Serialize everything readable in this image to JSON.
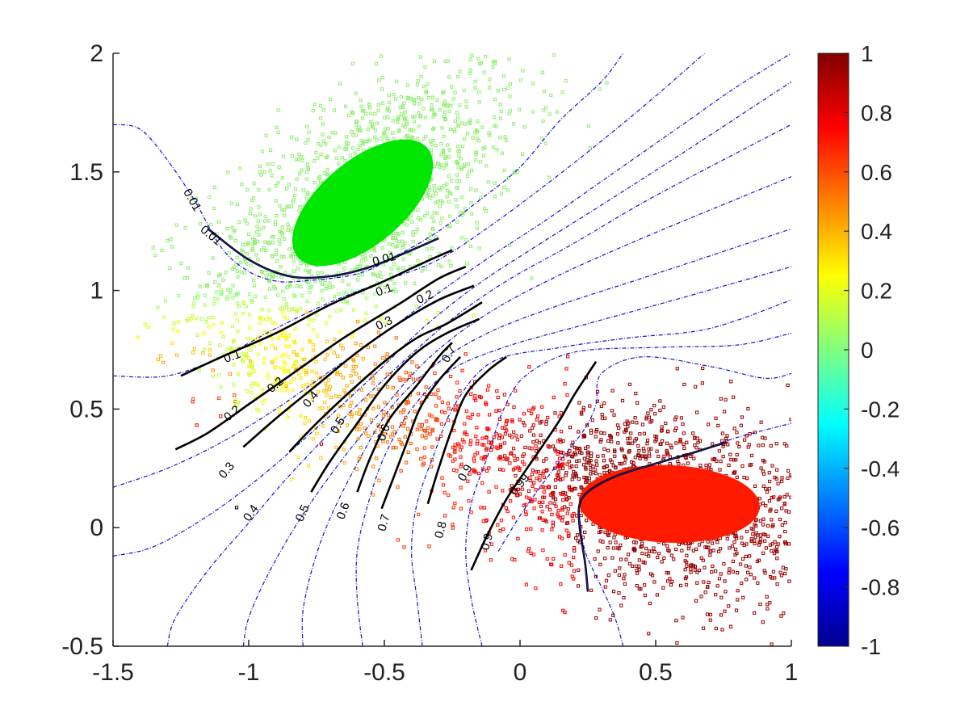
{
  "chart_data": {
    "type": "scatter",
    "title": "",
    "xlabel": "",
    "ylabel": "",
    "xlim": [
      -1.5,
      1
    ],
    "ylim": [
      -0.5,
      2
    ],
    "x_ticks": [
      "-1.5",
      "-1",
      "-0.5",
      "0",
      "0.5",
      "1"
    ],
    "y_ticks": [
      "-0.5",
      "0",
      "0.5",
      "1",
      "1.5",
      "2"
    ],
    "grid": false,
    "colorbar": {
      "colormap": "jet",
      "range": [
        -1,
        1
      ],
      "ticks": [
        "1",
        "0.8",
        "0.6",
        "0.4",
        "0.2",
        "0",
        "-0.2",
        "-0.4",
        "-0.6",
        "-0.8",
        "-1"
      ]
    },
    "clusters": [
      {
        "center": [
          -0.58,
          1.37
        ],
        "spread": [
          0.2,
          0.2
        ],
        "correlation": 0.6,
        "core_color": "#00e600",
        "point_color": "#90ee70"
      },
      {
        "center": [
          0.55,
          0.1
        ],
        "spread": [
          0.22,
          0.14
        ],
        "correlation": -0.3,
        "core_color": "#ff1a00",
        "point_color": "#990000"
      }
    ],
    "contour_labels": [
      {
        "text": "0.01",
        "x": -1.21,
        "y": 1.38,
        "angle": 60
      },
      {
        "text": "0.01",
        "x": -1.14,
        "y": 1.23,
        "angle": 40
      },
      {
        "text": "0.01",
        "x": -0.5,
        "y": 1.13,
        "angle": -15
      },
      {
        "text": "0.1",
        "x": -1.06,
        "y": 0.72,
        "angle": -20
      },
      {
        "text": "0.1",
        "x": -0.5,
        "y": 1.0,
        "angle": -20
      },
      {
        "text": "0.2",
        "x": -0.9,
        "y": 0.6,
        "angle": -40
      },
      {
        "text": "0.2",
        "x": -0.35,
        "y": 0.97,
        "angle": -25
      },
      {
        "text": "0.2",
        "x": -1.06,
        "y": 0.48,
        "angle": -40
      },
      {
        "text": "0.3",
        "x": -0.5,
        "y": 0.86,
        "angle": -25
      },
      {
        "text": "0.3",
        "x": -1.08,
        "y": 0.24,
        "angle": -50
      },
      {
        "text": "0.4",
        "x": -0.77,
        "y": 0.54,
        "angle": -50
      },
      {
        "text": "0.4",
        "x": -0.99,
        "y": 0.06,
        "angle": -55
      },
      {
        "text": "0.5",
        "x": -0.67,
        "y": 0.43,
        "angle": -60
      },
      {
        "text": "0.5",
        "x": -0.8,
        "y": 0.06,
        "angle": -65
      },
      {
        "text": "0.6",
        "x": -0.5,
        "y": 0.4,
        "angle": -70
      },
      {
        "text": "0.6",
        "x": -0.65,
        "y": 0.07,
        "angle": -70
      },
      {
        "text": "0.7",
        "x": -0.26,
        "y": 0.73,
        "angle": -60
      },
      {
        "text": "0.7",
        "x": -0.5,
        "y": 0.02,
        "angle": -75
      },
      {
        "text": "0.8",
        "x": -0.29,
        "y": -0.01,
        "angle": -75
      },
      {
        "text": "0.9",
        "x": -0.12,
        "y": -0.06,
        "angle": -75
      },
      {
        "text": "0.9",
        "x": -0.2,
        "y": 0.23,
        "angle": -60
      },
      {
        "text": "0.99",
        "x": 0.0,
        "y": 0.18,
        "angle": -50
      }
    ],
    "blue_contours": [
      [
        [
          -1.5,
          1.7
        ],
        [
          -1.4,
          1.68
        ],
        [
          -1.3,
          1.55
        ],
        [
          -1.2,
          1.38
        ],
        [
          -1.1,
          1.18
        ],
        [
          -1.0,
          1.08
        ],
        [
          -0.9,
          1.04
        ],
        [
          -0.8,
          1.04
        ],
        [
          -0.6,
          1.07
        ],
        [
          -0.45,
          1.15
        ],
        [
          -0.3,
          1.25
        ],
        [
          -0.15,
          1.38
        ],
        [
          0.0,
          1.52
        ],
        [
          0.15,
          1.72
        ],
        [
          0.3,
          1.88
        ],
        [
          0.38,
          2.0
        ]
      ],
      [
        [
          -1.5,
          0.64
        ],
        [
          -1.3,
          0.64
        ],
        [
          -1.1,
          0.72
        ],
        [
          -0.9,
          0.84
        ],
        [
          -0.7,
          0.95
        ],
        [
          -0.5,
          1.04
        ],
        [
          -0.3,
          1.13
        ],
        [
          -0.1,
          1.28
        ],
        [
          0.1,
          1.45
        ],
        [
          0.3,
          1.63
        ],
        [
          0.5,
          1.82
        ],
        [
          0.68,
          2.0
        ]
      ],
      [
        [
          -1.5,
          0.17
        ],
        [
          -1.3,
          0.25
        ],
        [
          -1.1,
          0.36
        ],
        [
          -0.9,
          0.5
        ],
        [
          -0.7,
          0.66
        ],
        [
          -0.5,
          0.82
        ],
        [
          -0.3,
          0.99
        ],
        [
          -0.1,
          1.15
        ],
        [
          0.1,
          1.3
        ],
        [
          0.35,
          1.5
        ],
        [
          0.6,
          1.7
        ],
        [
          0.8,
          1.86
        ],
        [
          1.0,
          2.0
        ]
      ],
      [
        [
          -1.5,
          -0.12
        ],
        [
          -1.35,
          -0.08
        ],
        [
          -1.15,
          0.05
        ],
        [
          -0.95,
          0.22
        ],
        [
          -0.75,
          0.42
        ],
        [
          -0.55,
          0.63
        ],
        [
          -0.35,
          0.85
        ],
        [
          -0.15,
          1.03
        ],
        [
          0.05,
          1.18
        ],
        [
          0.3,
          1.36
        ],
        [
          0.6,
          1.58
        ],
        [
          1.0,
          1.88
        ]
      ],
      [
        [
          -1.3,
          -0.5
        ],
        [
          -1.27,
          -0.38
        ],
        [
          -1.15,
          -0.18
        ],
        [
          -1.0,
          0.02
        ],
        [
          -0.85,
          0.22
        ],
        [
          -0.65,
          0.46
        ],
        [
          -0.45,
          0.68
        ],
        [
          -0.25,
          0.88
        ],
        [
          -0.05,
          1.04
        ],
        [
          0.2,
          1.2
        ],
        [
          0.5,
          1.4
        ],
        [
          1.0,
          1.7
        ]
      ],
      [
        [
          -1.02,
          -0.5
        ],
        [
          -1.0,
          -0.38
        ],
        [
          -0.93,
          -0.2
        ],
        [
          -0.82,
          0.02
        ],
        [
          -0.68,
          0.25
        ],
        [
          -0.52,
          0.48
        ],
        [
          -0.35,
          0.7
        ],
        [
          -0.15,
          0.88
        ],
        [
          0.1,
          1.04
        ],
        [
          0.45,
          1.22
        ],
        [
          1.0,
          1.48
        ]
      ],
      [
        [
          -0.8,
          -0.5
        ],
        [
          -0.8,
          -0.35
        ],
        [
          -0.76,
          -0.15
        ],
        [
          -0.7,
          0.04
        ],
        [
          -0.6,
          0.27
        ],
        [
          -0.48,
          0.5
        ],
        [
          -0.32,
          0.68
        ],
        [
          -0.12,
          0.82
        ],
        [
          0.15,
          0.94
        ],
        [
          0.5,
          1.07
        ],
        [
          1.0,
          1.26
        ]
      ],
      [
        [
          -0.58,
          -0.5
        ],
        [
          -0.6,
          -0.3
        ],
        [
          -0.6,
          -0.1
        ],
        [
          -0.56,
          0.1
        ],
        [
          -0.5,
          0.3
        ],
        [
          -0.4,
          0.5
        ],
        [
          -0.26,
          0.66
        ],
        [
          -0.06,
          0.76
        ],
        [
          0.25,
          0.86
        ],
        [
          0.6,
          0.97
        ],
        [
          1.0,
          1.1
        ]
      ],
      [
        [
          -0.36,
          -0.5
        ],
        [
          -0.38,
          -0.3
        ],
        [
          -0.4,
          -0.1
        ],
        [
          -0.38,
          0.1
        ],
        [
          -0.32,
          0.3
        ],
        [
          -0.24,
          0.52
        ],
        [
          -0.1,
          0.7
        ],
        [
          0.15,
          0.76
        ],
        [
          0.4,
          0.8
        ],
        [
          0.7,
          0.84
        ],
        [
          1.0,
          0.96
        ]
      ],
      [
        [
          -0.14,
          -0.5
        ],
        [
          -0.18,
          -0.3
        ],
        [
          -0.2,
          -0.1
        ],
        [
          -0.18,
          0.1
        ],
        [
          -0.12,
          0.3
        ],
        [
          -0.06,
          0.5
        ],
        [
          0.02,
          0.64
        ],
        [
          0.2,
          0.74
        ],
        [
          0.5,
          0.76
        ],
        [
          0.8,
          0.77
        ],
        [
          1.0,
          0.82
        ]
      ],
      [
        [
          -0.08,
          -0.1
        ],
        [
          0.0,
          0.05
        ],
        [
          0.08,
          0.18
        ],
        [
          0.16,
          0.3
        ],
        [
          0.24,
          0.42
        ],
        [
          0.28,
          0.52
        ],
        [
          0.3,
          0.65
        ],
        [
          0.45,
          0.72
        ],
        [
          0.7,
          0.68
        ],
        [
          0.9,
          0.63
        ],
        [
          1.0,
          0.65
        ]
      ],
      [
        [
          0.38,
          -0.5
        ],
        [
          0.35,
          -0.38
        ],
        [
          0.3,
          -0.25
        ],
        [
          0.24,
          -0.1
        ],
        [
          0.22,
          0.04
        ],
        [
          0.22,
          0.1
        ],
        [
          0.26,
          0.16
        ],
        [
          0.36,
          0.22
        ],
        [
          0.5,
          0.27
        ],
        [
          0.65,
          0.32
        ],
        [
          0.8,
          0.38
        ],
        [
          1.0,
          0.44
        ]
      ]
    ],
    "black_contours": [
      [
        [
          -1.15,
          1.26
        ],
        [
          -1.0,
          1.13
        ],
        [
          -0.85,
          1.06
        ],
        [
          -0.7,
          1.06
        ],
        [
          -0.55,
          1.1
        ],
        [
          -0.4,
          1.17
        ],
        [
          -0.3,
          1.22
        ]
      ],
      [
        [
          -1.25,
          0.64
        ],
        [
          -1.1,
          0.72
        ],
        [
          -0.9,
          0.82
        ],
        [
          -0.7,
          0.94
        ],
        [
          -0.5,
          1.04
        ],
        [
          -0.35,
          1.12
        ],
        [
          -0.25,
          1.17
        ]
      ],
      [
        [
          -1.27,
          0.33
        ],
        [
          -1.15,
          0.4
        ],
        [
          -1.0,
          0.52
        ],
        [
          -0.85,
          0.64
        ],
        [
          -0.65,
          0.8
        ],
        [
          -0.45,
          0.94
        ],
        [
          -0.3,
          1.05
        ],
        [
          -0.2,
          1.1
        ]
      ],
      [
        [
          -1.02,
          0.34
        ],
        [
          -0.9,
          0.46
        ],
        [
          -0.75,
          0.6
        ],
        [
          -0.6,
          0.74
        ],
        [
          -0.45,
          0.86
        ],
        [
          -0.3,
          0.96
        ],
        [
          -0.17,
          1.02
        ]
      ],
      [
        [
          -0.85,
          0.32
        ],
        [
          -0.75,
          0.44
        ],
        [
          -0.62,
          0.58
        ],
        [
          -0.5,
          0.7
        ],
        [
          -0.38,
          0.8
        ],
        [
          -0.27,
          0.86
        ],
        [
          -0.14,
          0.95
        ]
      ],
      [
        [
          -0.77,
          0.15
        ],
        [
          -0.7,
          0.28
        ],
        [
          -0.6,
          0.44
        ],
        [
          -0.5,
          0.6
        ],
        [
          -0.38,
          0.74
        ],
        [
          -0.27,
          0.82
        ],
        [
          -0.15,
          0.88
        ]
      ],
      [
        [
          -0.6,
          0.15
        ],
        [
          -0.55,
          0.3
        ],
        [
          -0.48,
          0.46
        ],
        [
          -0.38,
          0.6
        ],
        [
          -0.3,
          0.72
        ],
        [
          -0.25,
          0.78
        ]
      ],
      [
        [
          -0.51,
          0.08
        ],
        [
          -0.47,
          0.2
        ],
        [
          -0.42,
          0.35
        ],
        [
          -0.37,
          0.5
        ],
        [
          -0.3,
          0.62
        ],
        [
          -0.22,
          0.72
        ]
      ],
      [
        [
          -0.34,
          0.1
        ],
        [
          -0.3,
          0.25
        ],
        [
          -0.25,
          0.42
        ],
        [
          -0.2,
          0.56
        ],
        [
          -0.12,
          0.66
        ],
        [
          -0.05,
          0.72
        ]
      ],
      [
        [
          -0.18,
          -0.18
        ],
        [
          -0.12,
          -0.03
        ],
        [
          -0.05,
          0.12
        ],
        [
          0.02,
          0.24
        ],
        [
          0.08,
          0.34
        ],
        [
          0.15,
          0.46
        ],
        [
          0.2,
          0.56
        ],
        [
          0.28,
          0.7
        ]
      ],
      [
        [
          0.25,
          -0.27
        ],
        [
          0.24,
          -0.15
        ],
        [
          0.22,
          0.0
        ],
        [
          0.22,
          0.1
        ],
        [
          0.26,
          0.16
        ],
        [
          0.36,
          0.22
        ],
        [
          0.5,
          0.27
        ],
        [
          0.65,
          0.32
        ],
        [
          0.76,
          0.36
        ]
      ]
    ]
  }
}
